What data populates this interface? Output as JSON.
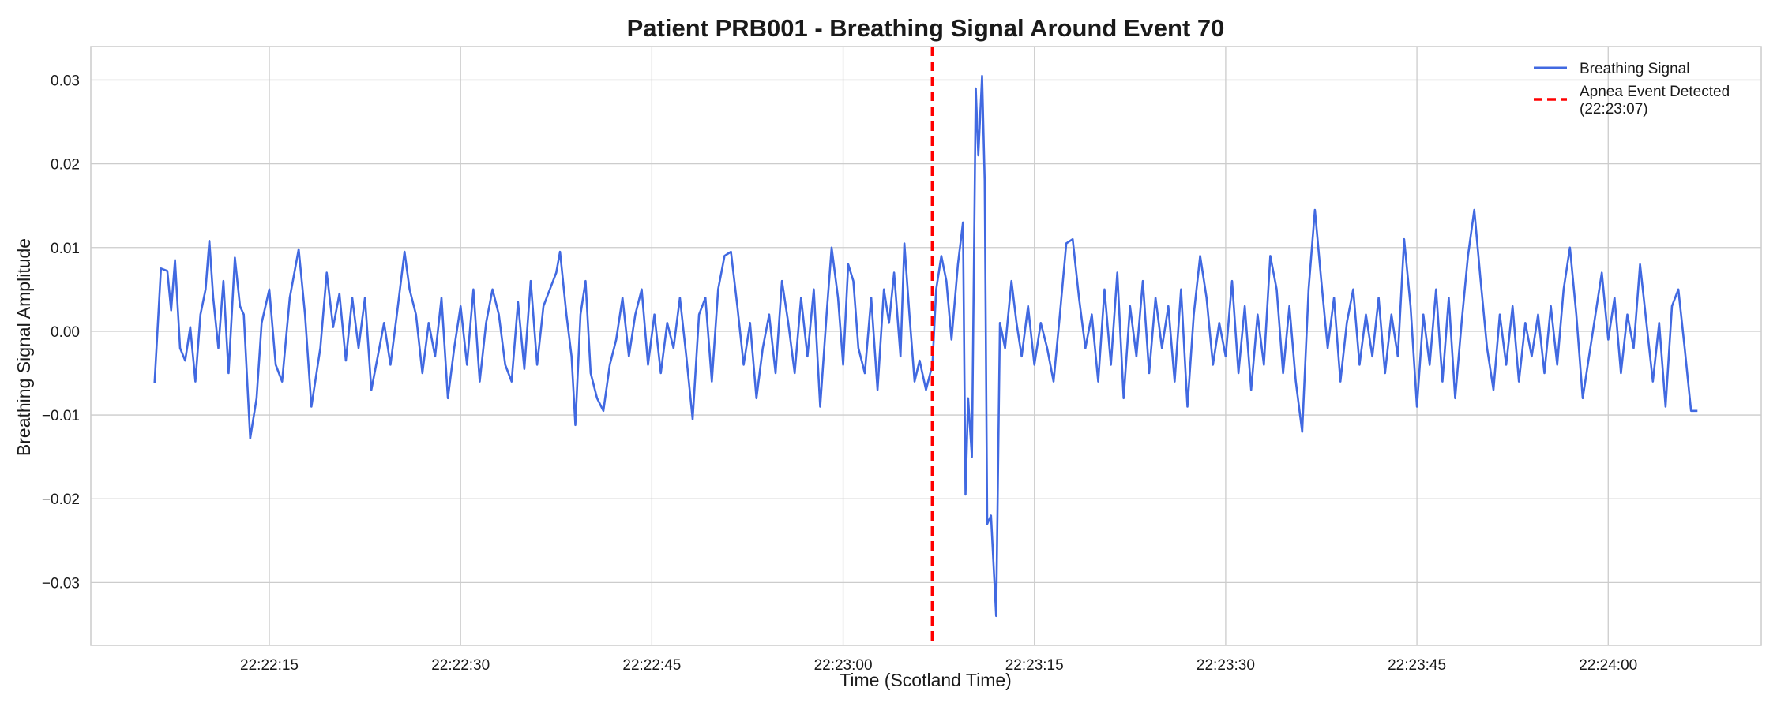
{
  "chart_data": {
    "type": "line",
    "title": "Patient PRB001 - Breathing Signal Around Event 70",
    "xlabel": "Time (Scotland Time)",
    "ylabel": "Breathing Signal Amplitude",
    "x_axis": {
      "start": "22:22:06",
      "end": "22:24:07",
      "range": [
        "22:22:01",
        "22:24:12"
      ],
      "ticks": [
        "22:22:15",
        "22:22:30",
        "22:22:45",
        "22:23:00",
        "22:23:15",
        "22:23:30",
        "22:23:45",
        "22:24:00"
      ]
    },
    "y_axis": {
      "range": [
        -0.0375,
        0.034
      ],
      "ticks": [
        0.03,
        0.02,
        0.01,
        0.0,
        -0.01,
        -0.02,
        -0.03
      ],
      "tick_labels": [
        "0.03",
        "0.02",
        "0.01",
        "0.00",
        "−0.01",
        "−0.02",
        "−0.03"
      ]
    },
    "grid": true,
    "legend_position": "top-right",
    "series": [
      {
        "name": "Breathing Signal",
        "color": "#4169e1",
        "style": "solid",
        "points": [
          [
            "22:22:06",
            -0.0062
          ],
          [
            "22:22:06.5",
            0.0075
          ],
          [
            "22:22:07",
            0.0072
          ],
          [
            "22:22:07.3",
            0.0025
          ],
          [
            "22:22:07.6",
            0.0085
          ],
          [
            "22:22:08",
            -0.002
          ],
          [
            "22:22:08.4",
            -0.0035
          ],
          [
            "22:22:08.8",
            0.0005
          ],
          [
            "22:22:09.2",
            -0.006
          ],
          [
            "22:22:09.6",
            0.002
          ],
          [
            "22:22:10",
            0.005
          ],
          [
            "22:22:10.3",
            0.0108
          ],
          [
            "22:22:10.6",
            0.004
          ],
          [
            "22:22:11",
            -0.002
          ],
          [
            "22:22:11.4",
            0.006
          ],
          [
            "22:22:11.8",
            -0.005
          ],
          [
            "22:22:12.3",
            0.0088
          ],
          [
            "22:22:12.7",
            0.003
          ],
          [
            "22:22:13",
            0.002
          ],
          [
            "22:22:13.5",
            -0.0128
          ],
          [
            "22:22:14",
            -0.008
          ],
          [
            "22:22:14.4",
            0.001
          ],
          [
            "22:22:15",
            0.005
          ],
          [
            "22:22:15.5",
            -0.004
          ],
          [
            "22:22:16",
            -0.006
          ],
          [
            "22:22:16.6",
            0.004
          ],
          [
            "22:22:17.3",
            0.0098
          ],
          [
            "22:22:17.8",
            0.002
          ],
          [
            "22:22:18.3",
            -0.009
          ],
          [
            "22:22:19",
            -0.002
          ],
          [
            "22:22:19.5",
            0.007
          ],
          [
            "22:22:20",
            0.0005
          ],
          [
            "22:22:20.5",
            0.0045
          ],
          [
            "22:22:21",
            -0.0035
          ],
          [
            "22:22:21.5",
            0.004
          ],
          [
            "22:22:22",
            -0.002
          ],
          [
            "22:22:22.5",
            0.004
          ],
          [
            "22:22:23",
            -0.007
          ],
          [
            "22:22:23.5",
            -0.003
          ],
          [
            "22:22:24",
            0.001
          ],
          [
            "22:22:24.5",
            -0.004
          ],
          [
            "22:22:25",
            0.002
          ],
          [
            "22:22:25.6",
            0.0095
          ],
          [
            "22:22:26",
            0.005
          ],
          [
            "22:22:26.5",
            0.002
          ],
          [
            "22:22:27",
            -0.005
          ],
          [
            "22:22:27.5",
            0.001
          ],
          [
            "22:22:28",
            -0.003
          ],
          [
            "22:22:28.5",
            0.004
          ],
          [
            "22:22:29",
            -0.008
          ],
          [
            "22:22:29.5",
            -0.002
          ],
          [
            "22:22:30",
            0.003
          ],
          [
            "22:22:30.5",
            -0.004
          ],
          [
            "22:22:31",
            0.005
          ],
          [
            "22:22:31.5",
            -0.006
          ],
          [
            "22:22:32",
            0.001
          ],
          [
            "22:22:32.5",
            0.005
          ],
          [
            "22:22:33",
            0.002
          ],
          [
            "22:22:33.5",
            -0.004
          ],
          [
            "22:22:34",
            -0.006
          ],
          [
            "22:22:34.5",
            0.0035
          ],
          [
            "22:22:35",
            -0.0045
          ],
          [
            "22:22:35.5",
            0.006
          ],
          [
            "22:22:36",
            -0.004
          ],
          [
            "22:22:36.5",
            0.003
          ],
          [
            "22:22:37",
            0.005
          ],
          [
            "22:22:37.5",
            0.007
          ],
          [
            "22:22:37.8",
            0.0095
          ],
          [
            "22:22:38.3",
            0.002
          ],
          [
            "22:22:38.7",
            -0.003
          ],
          [
            "22:22:39",
            -0.0112
          ],
          [
            "22:22:39.4",
            0.002
          ],
          [
            "22:22:39.8",
            0.006
          ],
          [
            "22:22:40.2",
            -0.005
          ],
          [
            "22:22:40.7",
            -0.008
          ],
          [
            "22:22:41.2",
            -0.0095
          ],
          [
            "22:22:41.7",
            -0.004
          ],
          [
            "22:22:42.2",
            -0.001
          ],
          [
            "22:22:42.7",
            0.004
          ],
          [
            "22:22:43.2",
            -0.003
          ],
          [
            "22:22:43.7",
            0.002
          ],
          [
            "22:22:44.2",
            0.005
          ],
          [
            "22:22:44.7",
            -0.004
          ],
          [
            "22:22:45.2",
            0.002
          ],
          [
            "22:22:45.7",
            -0.005
          ],
          [
            "22:22:46.2",
            0.001
          ],
          [
            "22:22:46.7",
            -0.002
          ],
          [
            "22:22:47.2",
            0.004
          ],
          [
            "22:22:47.7",
            -0.003
          ],
          [
            "22:22:48.2",
            -0.0105
          ],
          [
            "22:22:48.7",
            0.002
          ],
          [
            "22:22:49.2",
            0.004
          ],
          [
            "22:22:49.7",
            -0.006
          ],
          [
            "22:22:50.2",
            0.005
          ],
          [
            "22:22:50.7",
            0.009
          ],
          [
            "22:22:51.2",
            0.0095
          ],
          [
            "22:22:51.7",
            0.003
          ],
          [
            "22:22:52.2",
            -0.004
          ],
          [
            "22:22:52.7",
            0.001
          ],
          [
            "22:22:53.2",
            -0.008
          ],
          [
            "22:22:53.7",
            -0.002
          ],
          [
            "22:22:54.2",
            0.002
          ],
          [
            "22:22:54.7",
            -0.005
          ],
          [
            "22:22:55.2",
            0.006
          ],
          [
            "22:22:55.7",
            0.001
          ],
          [
            "22:22:56.2",
            -0.005
          ],
          [
            "22:22:56.7",
            0.004
          ],
          [
            "22:22:57.2",
            -0.003
          ],
          [
            "22:22:57.7",
            0.005
          ],
          [
            "22:22:58.2",
            -0.009
          ],
          [
            "22:22:58.7",
            0.002
          ],
          [
            "22:22:59.1",
            0.01
          ],
          [
            "22:22:59.6",
            0.004
          ],
          [
            "22:23:00",
            -0.004
          ],
          [
            "22:23:00.4",
            0.008
          ],
          [
            "22:23:00.8",
            0.006
          ],
          [
            "22:23:01.2",
            -0.002
          ],
          [
            "22:23:01.7",
            -0.005
          ],
          [
            "22:23:02.2",
            0.004
          ],
          [
            "22:23:02.7",
            -0.007
          ],
          [
            "22:23:03.2",
            0.005
          ],
          [
            "22:23:03.6",
            0.001
          ],
          [
            "22:23:04",
            0.007
          ],
          [
            "22:23:04.5",
            -0.003
          ],
          [
            "22:23:04.8",
            0.0105
          ],
          [
            "22:23:05.2",
            0.002
          ],
          [
            "22:23:05.6",
            -0.006
          ],
          [
            "22:23:06",
            -0.0035
          ],
          [
            "22:23:06.5",
            -0.007
          ],
          [
            "22:23:07",
            -0.004
          ],
          [
            "22:23:07.3",
            0.005
          ],
          [
            "22:23:07.7",
            0.009
          ],
          [
            "22:23:08.1",
            0.006
          ],
          [
            "22:23:08.5",
            -0.001
          ],
          [
            "22:23:09",
            0.008
          ],
          [
            "22:23:09.4",
            0.013
          ],
          [
            "22:23:09.6",
            -0.0195
          ],
          [
            "22:23:09.8",
            -0.008
          ],
          [
            "22:23:10.1",
            -0.015
          ],
          [
            "22:23:10.4",
            0.029
          ],
          [
            "22:23:10.6",
            0.021
          ],
          [
            "22:23:10.9",
            0.0305
          ],
          [
            "22:23:11.1",
            0.018
          ],
          [
            "22:23:11.3",
            -0.023
          ],
          [
            "22:23:11.6",
            -0.022
          ],
          [
            "22:23:12",
            -0.034
          ],
          [
            "22:23:12.3",
            0.001
          ],
          [
            "22:23:12.7",
            -0.002
          ],
          [
            "22:23:13.2",
            0.006
          ],
          [
            "22:23:13.6",
            0.001
          ],
          [
            "22:23:14",
            -0.003
          ],
          [
            "22:23:14.5",
            0.003
          ],
          [
            "22:23:15",
            -0.004
          ],
          [
            "22:23:15.5",
            0.001
          ],
          [
            "22:23:16",
            -0.002
          ],
          [
            "22:23:16.5",
            -0.006
          ],
          [
            "22:23:17",
            0.002
          ],
          [
            "22:23:17.5",
            0.0105
          ],
          [
            "22:23:18",
            0.011
          ],
          [
            "22:23:18.5",
            0.004
          ],
          [
            "22:23:19",
            -0.002
          ],
          [
            "22:23:19.5",
            0.002
          ],
          [
            "22:23:20",
            -0.006
          ],
          [
            "22:23:20.5",
            0.005
          ],
          [
            "22:23:21",
            -0.004
          ],
          [
            "22:23:21.5",
            0.007
          ],
          [
            "22:23:22",
            -0.008
          ],
          [
            "22:23:22.5",
            0.003
          ],
          [
            "22:23:23",
            -0.003
          ],
          [
            "22:23:23.5",
            0.006
          ],
          [
            "22:23:24",
            -0.005
          ],
          [
            "22:23:24.5",
            0.004
          ],
          [
            "22:23:25",
            -0.002
          ],
          [
            "22:23:25.5",
            0.003
          ],
          [
            "22:23:26",
            -0.006
          ],
          [
            "22:23:26.5",
            0.005
          ],
          [
            "22:23:27",
            -0.009
          ],
          [
            "22:23:27.5",
            0.002
          ],
          [
            "22:23:28",
            0.009
          ],
          [
            "22:23:28.5",
            0.004
          ],
          [
            "22:23:29",
            -0.004
          ],
          [
            "22:23:29.5",
            0.001
          ],
          [
            "22:23:30",
            -0.003
          ],
          [
            "22:23:30.5",
            0.006
          ],
          [
            "22:23:31",
            -0.005
          ],
          [
            "22:23:31.5",
            0.003
          ],
          [
            "22:23:32",
            -0.007
          ],
          [
            "22:23:32.5",
            0.002
          ],
          [
            "22:23:33",
            -0.004
          ],
          [
            "22:23:33.5",
            0.009
          ],
          [
            "22:23:34",
            0.005
          ],
          [
            "22:23:34.5",
            -0.005
          ],
          [
            "22:23:35",
            0.003
          ],
          [
            "22:23:35.5",
            -0.006
          ],
          [
            "22:23:36",
            -0.012
          ],
          [
            "22:23:36.5",
            0.005
          ],
          [
            "22:23:37",
            0.0145
          ],
          [
            "22:23:37.5",
            0.006
          ],
          [
            "22:23:38",
            -0.002
          ],
          [
            "22:23:38.5",
            0.004
          ],
          [
            "22:23:39",
            -0.006
          ],
          [
            "22:23:39.5",
            0.001
          ],
          [
            "22:23:40",
            0.005
          ],
          [
            "22:23:40.5",
            -0.004
          ],
          [
            "22:23:41",
            0.002
          ],
          [
            "22:23:41.5",
            -0.003
          ],
          [
            "22:23:42",
            0.004
          ],
          [
            "22:23:42.5",
            -0.005
          ],
          [
            "22:23:43",
            0.002
          ],
          [
            "22:23:43.5",
            -0.003
          ],
          [
            "22:23:44",
            0.011
          ],
          [
            "22:23:44.5",
            0.003
          ],
          [
            "22:23:45",
            -0.009
          ],
          [
            "22:23:45.5",
            0.002
          ],
          [
            "22:23:46",
            -0.004
          ],
          [
            "22:23:46.5",
            0.005
          ],
          [
            "22:23:47",
            -0.006
          ],
          [
            "22:23:47.5",
            0.004
          ],
          [
            "22:23:48",
            -0.008
          ],
          [
            "22:23:48.5",
            0.001
          ],
          [
            "22:23:49",
            0.009
          ],
          [
            "22:23:49.5",
            0.0145
          ],
          [
            "22:23:50",
            0.006
          ],
          [
            "22:23:50.5",
            -0.002
          ],
          [
            "22:23:51",
            -0.007
          ],
          [
            "22:23:51.5",
            0.002
          ],
          [
            "22:23:52",
            -0.004
          ],
          [
            "22:23:52.5",
            0.003
          ],
          [
            "22:23:53",
            -0.006
          ],
          [
            "22:23:53.5",
            0.001
          ],
          [
            "22:23:54",
            -0.003
          ],
          [
            "22:23:54.5",
            0.002
          ],
          [
            "22:23:55",
            -0.005
          ],
          [
            "22:23:55.5",
            0.003
          ],
          [
            "22:23:56",
            -0.004
          ],
          [
            "22:23:56.5",
            0.005
          ],
          [
            "22:23:57",
            0.01
          ],
          [
            "22:23:57.5",
            0.002
          ],
          [
            "22:23:58",
            -0.008
          ],
          [
            "22:23:58.5",
            -0.003
          ],
          [
            "22:23:59",
            0.002
          ],
          [
            "22:23:59.5",
            0.007
          ],
          [
            "22:24:00",
            -0.001
          ],
          [
            "22:24:00.5",
            0.004
          ],
          [
            "22:24:01",
            -0.005
          ],
          [
            "22:24:01.5",
            0.002
          ],
          [
            "22:24:02",
            -0.002
          ],
          [
            "22:24:02.5",
            0.008
          ],
          [
            "22:24:03",
            0.001
          ],
          [
            "22:24:03.5",
            -0.006
          ],
          [
            "22:24:04",
            0.001
          ],
          [
            "22:24:04.5",
            -0.009
          ],
          [
            "22:24:05",
            0.003
          ],
          [
            "22:24:05.5",
            0.005
          ],
          [
            "22:24:06",
            -0.002
          ],
          [
            "22:24:06.5",
            -0.0095
          ],
          [
            "22:24:07",
            -0.0095
          ]
        ]
      },
      {
        "name": "Apnea Event Detected\n(22:23:07)",
        "color": "#ff0000",
        "style": "dashed",
        "type": "vline",
        "x": "22:23:07"
      }
    ]
  }
}
